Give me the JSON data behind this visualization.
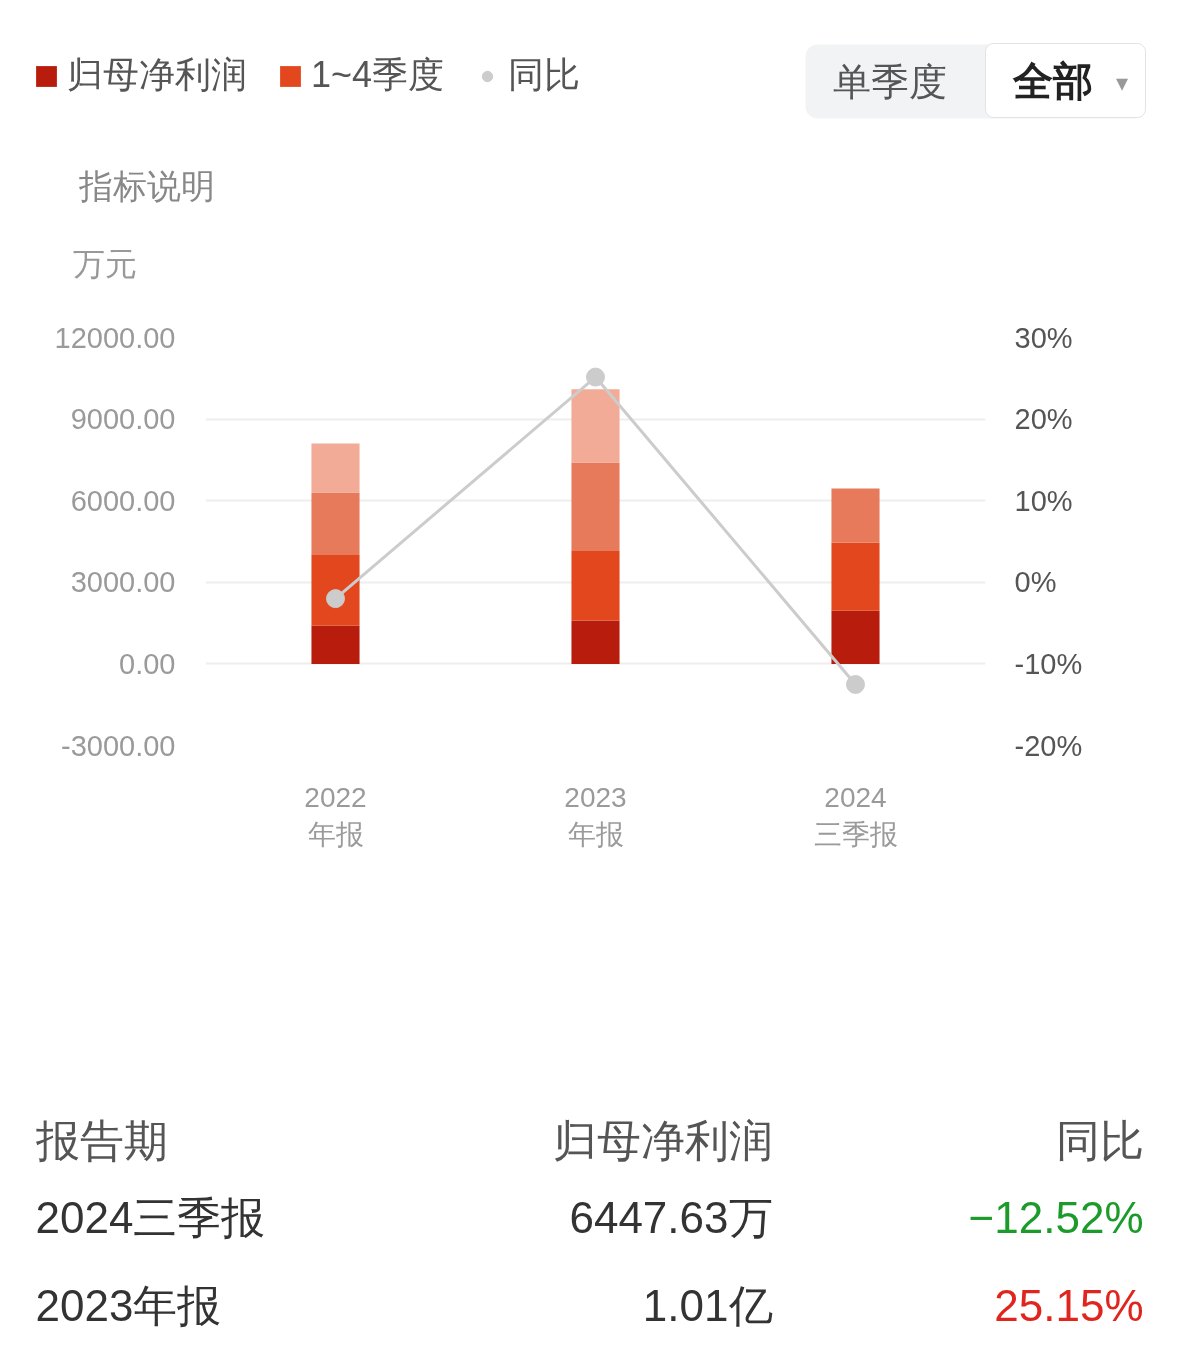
{
  "chart_data": {
    "type": "bar",
    "stacked": true,
    "categories": [
      "2022\n年报",
      "2023\n年报",
      "2024\n三季报"
    ],
    "series": [
      {
        "name": "归母净利润",
        "color": "#b81c0c",
        "values": [
          1400,
          1600,
          1950
        ]
      },
      {
        "name": "1~4季度",
        "color": "#e2471e",
        "values": [
          2600,
          2550,
          2500
        ]
      },
      {
        "color": "#e67a5a",
        "values": [
          2300,
          3250,
          2000
        ]
      },
      {
        "color": "#f2ab97",
        "values": [
          1800,
          2700,
          null
        ]
      },
      {
        "name": "同比",
        "type": "line",
        "axis": "y2",
        "color": "#cccccc",
        "values": [
          -2,
          25.15,
          -12.52
        ]
      }
    ],
    "ylabel": "万元",
    "ylim": [
      -3000,
      12000
    ],
    "yticks": [
      {
        "value": -3000,
        "label": "-3000.00"
      },
      {
        "value": 0,
        "label": "0.00"
      },
      {
        "value": 3000,
        "label": "3000.00"
      },
      {
        "value": 6000,
        "label": "6000.00"
      },
      {
        "value": 9000,
        "label": "9000.00"
      },
      {
        "value": 12000,
        "label": "12000.00"
      }
    ],
    "y2lim": [
      -20,
      30
    ],
    "y2ticks": [
      {
        "value": -20,
        "label": "-20%"
      },
      {
        "value": -10,
        "label": "-10%"
      },
      {
        "value": 0,
        "label": "0%"
      },
      {
        "value": 10,
        "label": "10%"
      },
      {
        "value": 20,
        "label": "20%"
      },
      {
        "value": 30,
        "label": "30%"
      }
    ],
    "marker": "circle",
    "grid": "y",
    "legend": "top left",
    "annotations": [
      "单季度",
      "全部",
      "▾",
      "指标说明",
      "报告期",
      "归母净利润",
      "同比",
      "2024三季报",
      "6447.63万",
      "−12.52%",
      "2023年报",
      "1.01亿",
      "25.15%"
    ]
  }
}
